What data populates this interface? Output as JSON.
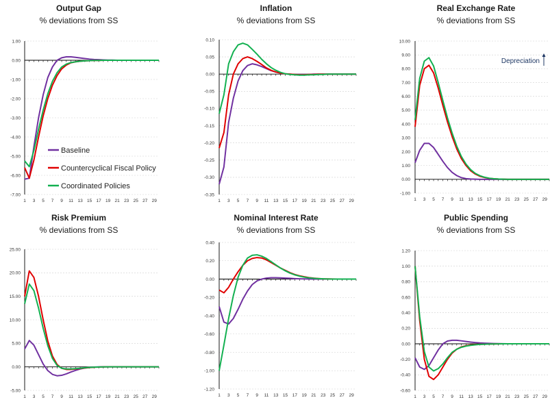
{
  "legend": [
    {
      "name": "Baseline",
      "color": "#7030a0"
    },
    {
      "name": "Countercyclical Fiscal Policy",
      "color": "#e00000"
    },
    {
      "name": "Coordinated Policies",
      "color": "#12b050"
    }
  ],
  "chart_data": [
    {
      "type": "line",
      "title": "Output Gap",
      "subtitle": "% deviations from SS",
      "ylim": [
        -7,
        1
      ],
      "yticks": [
        "1.00",
        "0.00",
        "-1.00",
        "-2.00",
        "-3.00",
        "-4.00",
        "-5.00",
        "-6.00",
        "-7.00"
      ],
      "ytick_values": [
        1,
        0,
        -1,
        -2,
        -3,
        -4,
        -5,
        -6,
        -7
      ],
      "xticks": [
        "1",
        "3",
        "5",
        "7",
        "9",
        "11",
        "13",
        "15",
        "17",
        "19",
        "21",
        "23",
        "25",
        "27",
        "29"
      ],
      "x": [
        1,
        2,
        3,
        4,
        5,
        6,
        7,
        8,
        9,
        10,
        11,
        12,
        13,
        14,
        15,
        16,
        17,
        18,
        19,
        20,
        21,
        22,
        23,
        24,
        25,
        26,
        27,
        28,
        29,
        30
      ],
      "series": [
        {
          "name": "Baseline",
          "values": [
            -6.2,
            -6.15,
            -4.5,
            -3.0,
            -1.8,
            -0.9,
            -0.35,
            0.0,
            0.13,
            0.18,
            0.18,
            0.15,
            0.12,
            0.09,
            0.06,
            0.04,
            0.03,
            0.02,
            0.01,
            0.01,
            0,
            0,
            0,
            0,
            0,
            0,
            0,
            0,
            0,
            0
          ]
        },
        {
          "name": "Countercyclical Fiscal Policy",
          "values": [
            -5.6,
            -6.15,
            -5.2,
            -4.0,
            -2.9,
            -2.0,
            -1.3,
            -0.8,
            -0.45,
            -0.25,
            -0.13,
            -0.08,
            -0.05,
            -0.03,
            -0.02,
            -0.01,
            -0.01,
            0,
            0,
            0,
            0,
            0,
            0,
            0,
            0,
            0,
            0,
            0,
            0,
            0
          ]
        },
        {
          "name": "Coordinated Policies",
          "values": [
            -5.25,
            -5.55,
            -4.7,
            -3.6,
            -2.6,
            -1.75,
            -1.1,
            -0.65,
            -0.35,
            -0.2,
            -0.12,
            -0.08,
            -0.05,
            -0.03,
            -0.02,
            -0.01,
            -0.01,
            0,
            0,
            0,
            0,
            0,
            0,
            0,
            0,
            0,
            0,
            0,
            0,
            0
          ]
        }
      ]
    },
    {
      "type": "line",
      "title": "Inflation",
      "subtitle": "% deviations from SS",
      "ylim": [
        -0.35,
        0.1
      ],
      "yticks": [
        "0.10",
        "0.05",
        "0.00",
        "-0.05",
        "-0.10",
        "-0.15",
        "-0.20",
        "-0.25",
        "-0.30",
        "-0.35"
      ],
      "ytick_values": [
        0.1,
        0.05,
        0,
        -0.05,
        -0.1,
        -0.15,
        -0.2,
        -0.25,
        -0.3,
        -0.35
      ],
      "xticks": [
        "1",
        "3",
        "5",
        "7",
        "9",
        "11",
        "13",
        "15",
        "17",
        "19",
        "21",
        "23",
        "25",
        "27",
        "29"
      ],
      "x": [
        1,
        2,
        3,
        4,
        5,
        6,
        7,
        8,
        9,
        10,
        11,
        12,
        13,
        14,
        15,
        16,
        17,
        18,
        19,
        20,
        21,
        22,
        23,
        24,
        25,
        26,
        27,
        28,
        29,
        30
      ],
      "series": [
        {
          "name": "Baseline",
          "values": [
            -0.32,
            -0.27,
            -0.14,
            -0.07,
            -0.02,
            0.01,
            0.025,
            0.03,
            0.027,
            0.022,
            0.016,
            0.01,
            0.006,
            0.003,
            0.001,
            0,
            -0.001,
            -0.001,
            -0.001,
            -0.001,
            0,
            0,
            0,
            0,
            0,
            0,
            0,
            0,
            0,
            0
          ]
        },
        {
          "name": "Countercyclical Fiscal Policy",
          "values": [
            -0.215,
            -0.17,
            -0.06,
            0.0,
            0.03,
            0.045,
            0.05,
            0.045,
            0.037,
            0.028,
            0.018,
            0.011,
            0.006,
            0.003,
            0.001,
            0,
            -0.001,
            -0.002,
            -0.002,
            -0.001,
            -0.001,
            0,
            0,
            0,
            0,
            0,
            0,
            0,
            0,
            0
          ]
        },
        {
          "name": "Coordinated Policies",
          "values": [
            -0.115,
            -0.06,
            0.03,
            0.065,
            0.085,
            0.09,
            0.085,
            0.072,
            0.058,
            0.043,
            0.03,
            0.019,
            0.011,
            0.005,
            0.001,
            -0.001,
            -0.002,
            -0.003,
            -0.003,
            -0.002,
            -0.002,
            -0.001,
            -0.001,
            0,
            0,
            0,
            0,
            0,
            0,
            0
          ]
        }
      ]
    },
    {
      "type": "line",
      "title": "Real Exchange Rate",
      "subtitle": "% deviations from SS",
      "ylim": [
        -1,
        10
      ],
      "yticks": [
        "10.00",
        "9.00",
        "8.00",
        "7.00",
        "6.00",
        "5.00",
        "4.00",
        "3.00",
        "2.00",
        "1.00",
        "0.00",
        "-1.00"
      ],
      "ytick_values": [
        10,
        9,
        8,
        7,
        6,
        5,
        4,
        3,
        2,
        1,
        0,
        -1
      ],
      "xticks": [
        "1",
        "3",
        "5",
        "7",
        "9",
        "11",
        "13",
        "15",
        "17",
        "19",
        "21",
        "23",
        "25",
        "27",
        "29"
      ],
      "x": [
        1,
        2,
        3,
        4,
        5,
        6,
        7,
        8,
        9,
        10,
        11,
        12,
        13,
        14,
        15,
        16,
        17,
        18,
        19,
        20,
        21,
        22,
        23,
        24,
        25,
        26,
        27,
        28,
        29,
        30
      ],
      "annotation": "Depreciation",
      "series": [
        {
          "name": "Baseline",
          "values": [
            1.2,
            2.1,
            2.6,
            2.6,
            2.3,
            1.8,
            1.3,
            0.85,
            0.5,
            0.27,
            0.12,
            0.05,
            0.02,
            0.01,
            0,
            0,
            0,
            0,
            0,
            0,
            0,
            0,
            0,
            0,
            0,
            0,
            0,
            0,
            0,
            0
          ]
        },
        {
          "name": "Countercyclical Fiscal Policy",
          "values": [
            3.8,
            6.8,
            8.0,
            8.25,
            7.7,
            6.6,
            5.35,
            4.15,
            3.1,
            2.2,
            1.5,
            1.0,
            0.62,
            0.38,
            0.22,
            0.13,
            0.07,
            0.04,
            0.02,
            0.01,
            0,
            0,
            0,
            0,
            0,
            0,
            0,
            0,
            0,
            0
          ]
        },
        {
          "name": "Coordinated Policies",
          "values": [
            4.3,
            7.3,
            8.55,
            8.8,
            8.2,
            7.0,
            5.7,
            4.45,
            3.35,
            2.4,
            1.65,
            1.1,
            0.7,
            0.43,
            0.26,
            0.15,
            0.08,
            0.04,
            0.02,
            0.01,
            0,
            0,
            0,
            0,
            0,
            0,
            0,
            0,
            0,
            0
          ]
        }
      ]
    },
    {
      "type": "line",
      "title": "Risk Premium",
      "subtitle": "% deviations from SS",
      "ylim": [
        -5,
        25
      ],
      "yticks": [
        "25.00",
        "20.00",
        "15.00",
        "10.00",
        "5.00",
        "0.00",
        "-5.00"
      ],
      "ytick_values": [
        25,
        20,
        15,
        10,
        5,
        0,
        -5
      ],
      "xticks": [
        "1",
        "3",
        "5",
        "7",
        "9",
        "11",
        "13",
        "15",
        "17",
        "19",
        "21",
        "23",
        "25",
        "27",
        "29"
      ],
      "x": [
        1,
        2,
        3,
        4,
        5,
        6,
        7,
        8,
        9,
        10,
        11,
        12,
        13,
        14,
        15,
        16,
        17,
        18,
        19,
        20,
        21,
        22,
        23,
        24,
        25,
        26,
        27,
        28,
        29,
        30
      ],
      "series": [
        {
          "name": "Baseline",
          "values": [
            3.8,
            5.6,
            4.6,
            2.6,
            0.6,
            -0.8,
            -1.6,
            -1.9,
            -1.8,
            -1.5,
            -1.1,
            -0.75,
            -0.45,
            -0.25,
            -0.12,
            -0.05,
            -0.02,
            0,
            0,
            0,
            0,
            0,
            0,
            0,
            0,
            0,
            0,
            0,
            0,
            0
          ]
        },
        {
          "name": "Countercyclical Fiscal Policy",
          "values": [
            15.0,
            20.4,
            19.0,
            15.0,
            10.0,
            5.5,
            2.3,
            0.5,
            -0.3,
            -0.55,
            -0.55,
            -0.45,
            -0.35,
            -0.25,
            -0.15,
            -0.08,
            -0.04,
            -0.02,
            0,
            0,
            0,
            0,
            0,
            0,
            0,
            0,
            0,
            0,
            0,
            0
          ]
        },
        {
          "name": "Coordinated Policies",
          "values": [
            13.4,
            17.6,
            16.2,
            12.5,
            8.2,
            4.5,
            1.8,
            0.3,
            -0.3,
            -0.45,
            -0.45,
            -0.38,
            -0.3,
            -0.2,
            -0.12,
            -0.07,
            -0.03,
            -0.01,
            0,
            0,
            0,
            0,
            0,
            0,
            0,
            0,
            0,
            0,
            0,
            0
          ]
        }
      ]
    },
    {
      "type": "line",
      "title": "Nominal Interest Rate",
      "subtitle": "% deviations from SS",
      "ylim": [
        -1.2,
        0.4
      ],
      "yticks": [
        "0.40",
        "0.20",
        "0.00",
        "-0.20",
        "-0.40",
        "-0.60",
        "-0.80",
        "-1.00",
        "-1.20"
      ],
      "ytick_values": [
        0.4,
        0.2,
        0,
        -0.2,
        -0.4,
        -0.6,
        -0.8,
        -1,
        -1.2
      ],
      "xticks": [
        "1",
        "3",
        "5",
        "7",
        "9",
        "11",
        "13",
        "15",
        "17",
        "19",
        "21",
        "23",
        "25",
        "27",
        "29"
      ],
      "x": [
        1,
        2,
        3,
        4,
        5,
        6,
        7,
        8,
        9,
        10,
        11,
        12,
        13,
        14,
        15,
        16,
        17,
        18,
        19,
        20,
        21,
        22,
        23,
        24,
        25,
        26,
        27,
        28,
        29,
        30
      ],
      "series": [
        {
          "name": "Baseline",
          "values": [
            -0.3,
            -0.47,
            -0.49,
            -0.43,
            -0.33,
            -0.22,
            -0.13,
            -0.06,
            -0.02,
            0.0,
            0.01,
            0.015,
            0.015,
            0.013,
            0.01,
            0.008,
            0.005,
            0.003,
            0.002,
            0.001,
            0,
            0,
            0,
            0,
            0,
            0,
            0,
            0,
            0,
            0
          ]
        },
        {
          "name": "Countercyclical Fiscal Policy",
          "values": [
            -0.12,
            -0.15,
            -0.09,
            0.0,
            0.08,
            0.15,
            0.2,
            0.225,
            0.235,
            0.23,
            0.21,
            0.18,
            0.15,
            0.12,
            0.095,
            0.07,
            0.05,
            0.036,
            0.025,
            0.016,
            0.01,
            0.006,
            0.003,
            0.002,
            0.001,
            0,
            0,
            0,
            0,
            0
          ]
        },
        {
          "name": "Coordinated Policies",
          "values": [
            -1.0,
            -0.72,
            -0.43,
            -0.18,
            0.02,
            0.15,
            0.23,
            0.26,
            0.265,
            0.25,
            0.225,
            0.19,
            0.155,
            0.12,
            0.09,
            0.065,
            0.046,
            0.032,
            0.021,
            0.013,
            0.008,
            0.005,
            0.003,
            0.001,
            0,
            0,
            0,
            0,
            0,
            0
          ]
        }
      ]
    },
    {
      "type": "line",
      "title": "Public Spending",
      "subtitle": "% deviations from SS",
      "ylim": [
        -0.6,
        1.2
      ],
      "yticks": [
        "1.20",
        "1.00",
        "0.80",
        "0.60",
        "0.40",
        "0.20",
        "0.00",
        "-0.20",
        "-0.40",
        "-0.60"
      ],
      "ytick_values": [
        1.2,
        1,
        0.8,
        0.6,
        0.4,
        0.2,
        0,
        -0.2,
        -0.4,
        -0.6
      ],
      "xticks": [
        "1",
        "3",
        "5",
        "7",
        "9",
        "11",
        "13",
        "15",
        "17",
        "19",
        "21",
        "23",
        "25",
        "27",
        "29"
      ],
      "x": [
        1,
        2,
        3,
        4,
        5,
        6,
        7,
        8,
        9,
        10,
        11,
        12,
        13,
        14,
        15,
        16,
        17,
        18,
        19,
        20,
        21,
        22,
        23,
        24,
        25,
        26,
        27,
        28,
        29,
        30
      ],
      "series": [
        {
          "name": "Baseline",
          "values": [
            -0.18,
            -0.3,
            -0.33,
            -0.28,
            -0.18,
            -0.08,
            0.0,
            0.035,
            0.045,
            0.045,
            0.038,
            0.03,
            0.022,
            0.016,
            0.011,
            0.008,
            0.005,
            0.003,
            0.002,
            0.001,
            0,
            0,
            0,
            0,
            0,
            0,
            0,
            0,
            0,
            0
          ]
        },
        {
          "name": "Countercyclical Fiscal Policy",
          "values": [
            1.0,
            0.3,
            -0.2,
            -0.42,
            -0.46,
            -0.4,
            -0.3,
            -0.2,
            -0.12,
            -0.07,
            -0.04,
            -0.025,
            -0.015,
            -0.01,
            -0.007,
            -0.005,
            -0.003,
            -0.002,
            -0.001,
            0,
            0,
            0,
            0,
            0,
            0,
            0,
            0,
            0,
            0,
            0
          ]
        },
        {
          "name": "Coordinated Policies",
          "values": [
            1.0,
            0.35,
            -0.1,
            -0.3,
            -0.35,
            -0.32,
            -0.26,
            -0.18,
            -0.11,
            -0.07,
            -0.045,
            -0.03,
            -0.02,
            -0.013,
            -0.008,
            -0.005,
            -0.003,
            -0.002,
            -0.001,
            0,
            0,
            0,
            0,
            0,
            0,
            0,
            0,
            0,
            0,
            0
          ]
        }
      ]
    }
  ]
}
